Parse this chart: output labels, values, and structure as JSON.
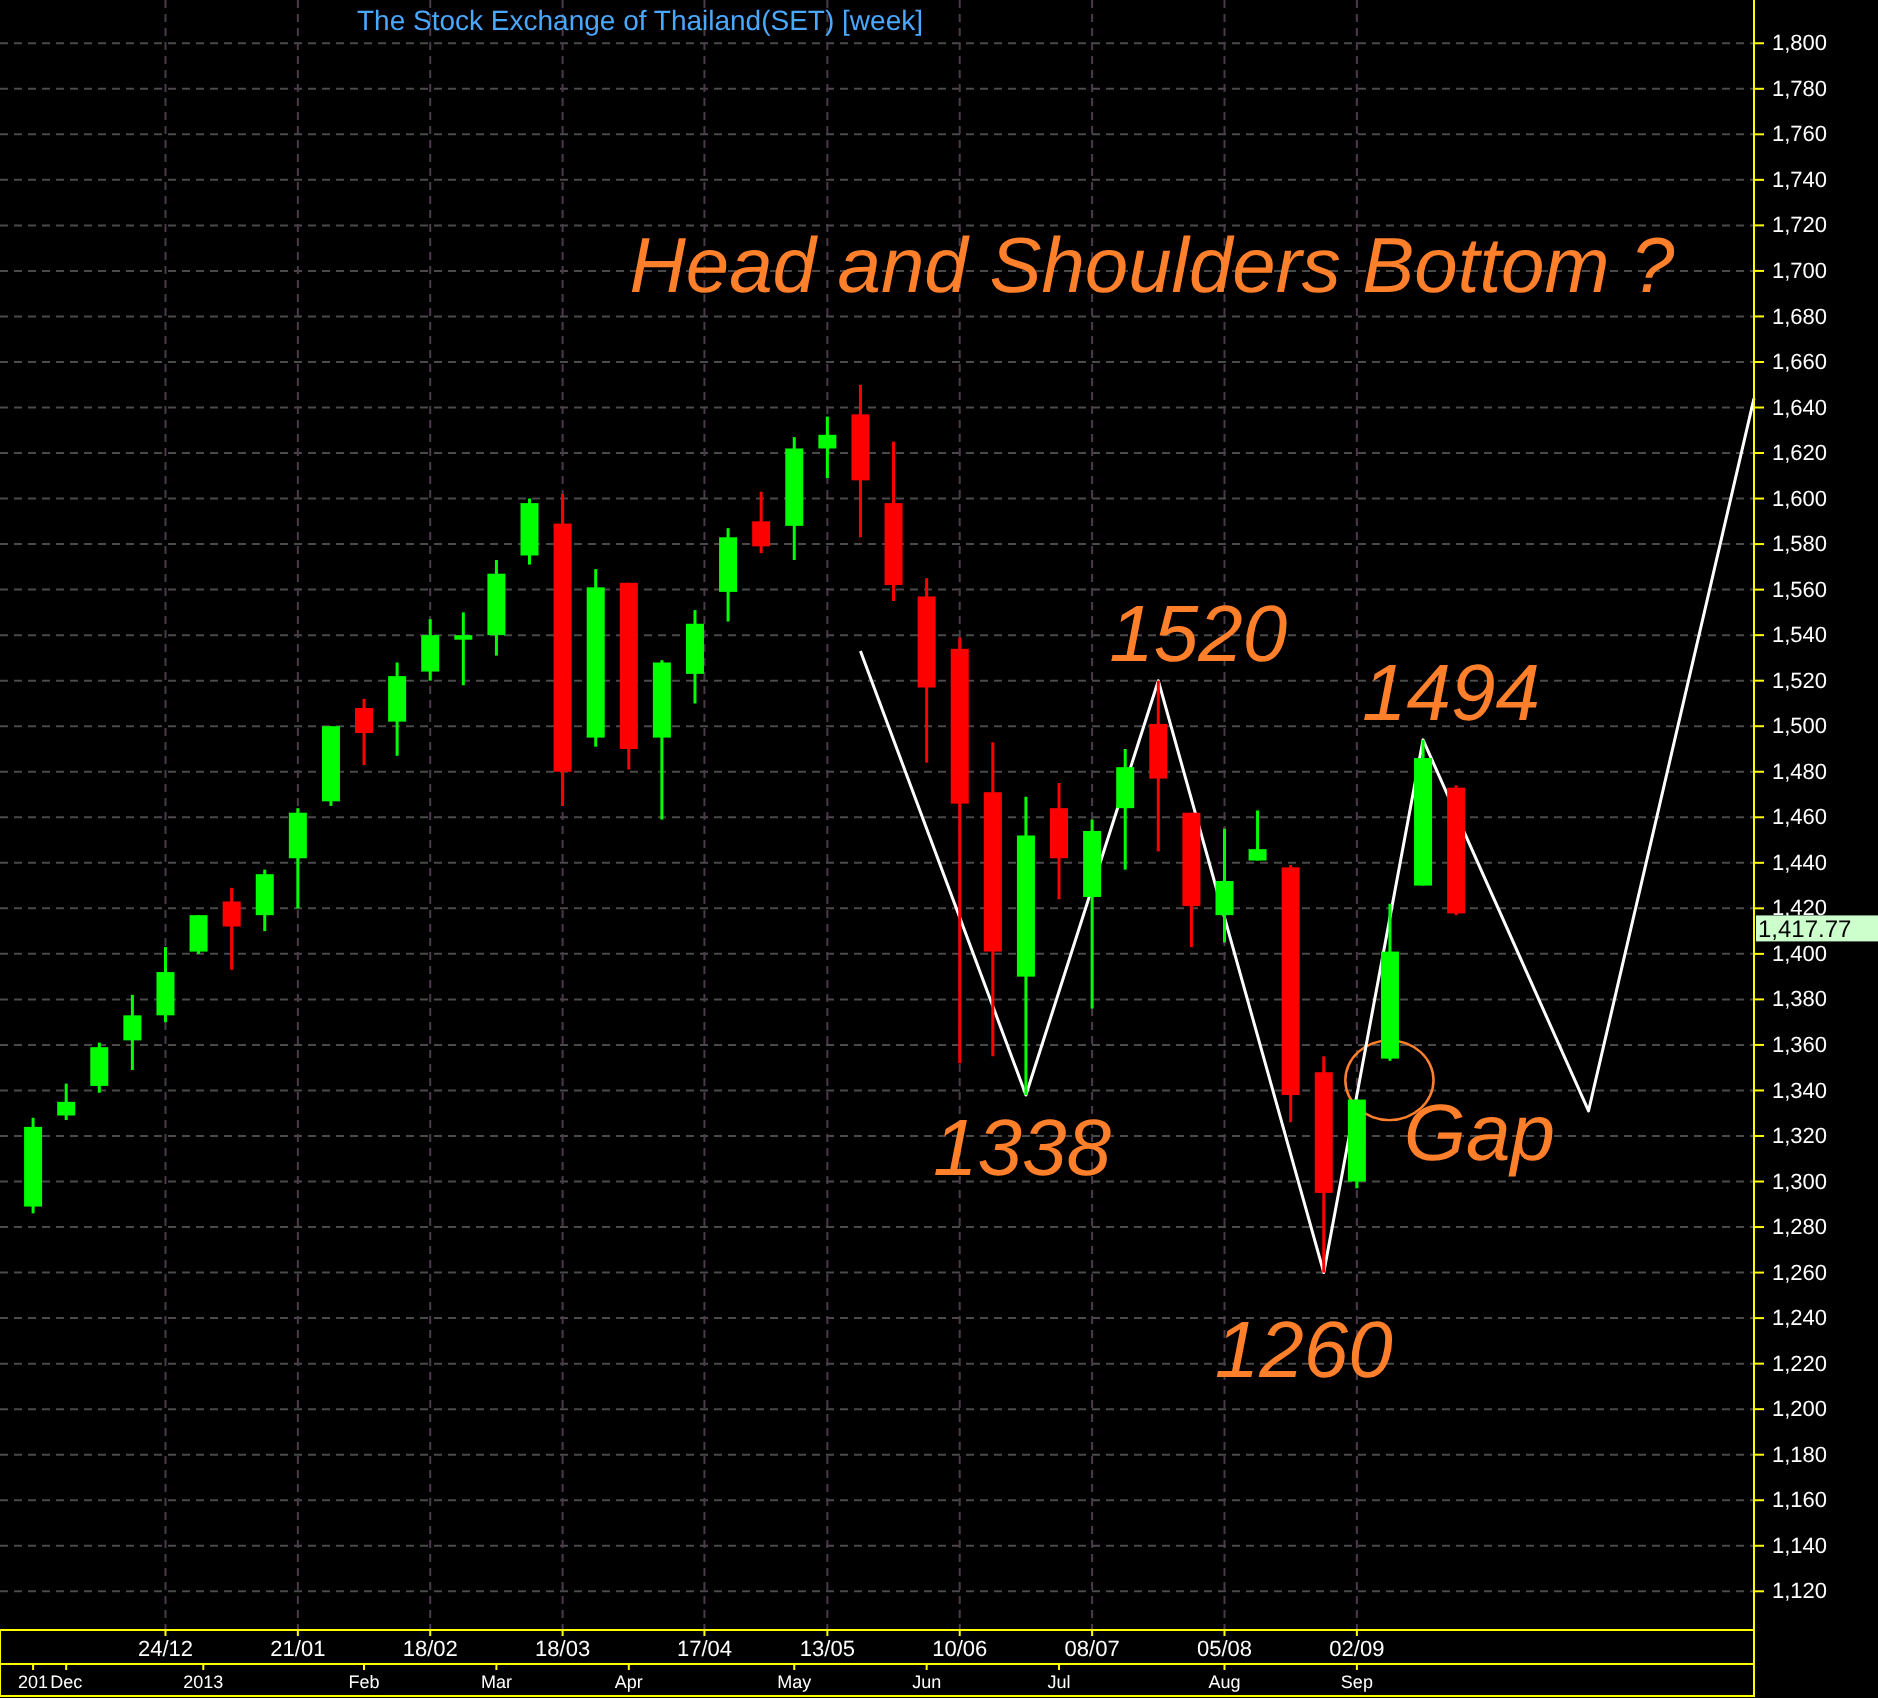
{
  "chart_data": {
    "type": "candlestick",
    "title": "The Stock Exchange of Thailand(SET) [week]",
    "annotations": [
      "Head and Shoulders Bottom ?",
      {
        "text": "1520",
        "x": "2013-07-22",
        "y": 1520
      },
      {
        "text": "1338",
        "x": "2013-06-24",
        "y": 1338
      },
      {
        "text": "1260",
        "x": "2013-08-26",
        "y": 1260
      },
      {
        "text": "1494",
        "x": "2013-09-16",
        "y": 1494
      },
      "Gap",
      "1,417.77"
    ],
    "x": [
      "2012-11-26",
      "2012-12-03",
      "2012-12-10",
      "2012-12-17",
      "2012-12-24",
      "2012-12-31",
      "2013-01-07",
      "2013-01-14",
      "2013-01-21",
      "2013-01-28",
      "2013-02-04",
      "2013-02-11",
      "2013-02-18",
      "2013-02-25",
      "2013-03-04",
      "2013-03-11",
      "2013-03-18",
      "2013-03-25",
      "2013-04-01",
      "2013-04-08",
      "2013-04-15",
      "2013-04-22",
      "2013-04-29",
      "2013-05-06",
      "2013-05-13",
      "2013-05-20",
      "2013-05-27",
      "2013-06-03",
      "2013-06-10",
      "2013-06-17",
      "2013-06-24",
      "2013-07-01",
      "2013-07-08",
      "2013-07-15",
      "2013-07-22",
      "2013-07-29",
      "2013-08-05",
      "2013-08-12",
      "2013-08-19",
      "2013-08-26",
      "2013-09-02",
      "2013-09-09",
      "2013-09-16",
      "2013-09-23"
    ],
    "ohlc": [
      [
        1289,
        1328,
        1286,
        1324
      ],
      [
        1329,
        1343,
        1327,
        1335
      ],
      [
        1342,
        1361,
        1339,
        1359
      ],
      [
        1362,
        1382,
        1349,
        1373
      ],
      [
        1373,
        1403,
        1370,
        1392
      ],
      [
        1401,
        1417,
        1400,
        1417
      ],
      [
        1423,
        1429,
        1393,
        1412
      ],
      [
        1417,
        1437,
        1410,
        1435
      ],
      [
        1442,
        1464,
        1420,
        1462
      ],
      [
        1467,
        1500,
        1465,
        1500
      ],
      [
        1508,
        1512,
        1483,
        1497
      ],
      [
        1502,
        1528,
        1487,
        1522
      ],
      [
        1524,
        1547,
        1520,
        1540
      ],
      [
        1538,
        1550,
        1518,
        1540
      ],
      [
        1540,
        1573,
        1531,
        1567
      ],
      [
        1575,
        1600,
        1571,
        1598
      ],
      [
        1589,
        1602,
        1465,
        1480
      ],
      [
        1495,
        1569,
        1491,
        1561
      ],
      [
        1563,
        1563,
        1481,
        1490
      ],
      [
        1495,
        1529,
        1459,
        1528
      ],
      [
        1523,
        1551,
        1510,
        1545
      ],
      [
        1559,
        1587,
        1546,
        1583
      ],
      [
        1590,
        1603,
        1576,
        1579
      ],
      [
        1588,
        1627,
        1573,
        1622
      ],
      [
        1622,
        1636,
        1609,
        1628
      ],
      [
        1637,
        1650,
        1583,
        1608
      ],
      [
        1598,
        1625,
        1555,
        1562
      ],
      [
        1557,
        1565,
        1484,
        1517
      ],
      [
        1534,
        1539,
        1352,
        1466
      ],
      [
        1471,
        1493,
        1355,
        1401
      ],
      [
        1390,
        1469,
        1338,
        1452
      ],
      [
        1464,
        1475,
        1424,
        1442
      ],
      [
        1425,
        1459,
        1376,
        1454
      ],
      [
        1464,
        1490,
        1437,
        1482
      ],
      [
        1501,
        1520,
        1445,
        1477
      ],
      [
        1462,
        1462,
        1403,
        1421
      ],
      [
        1417,
        1455,
        1405,
        1432
      ],
      [
        1441,
        1463,
        1441,
        1446
      ],
      [
        1438,
        1439,
        1326,
        1338
      ],
      [
        1348,
        1355,
        1260,
        1295
      ],
      [
        1300,
        1336,
        1297,
        1336
      ],
      [
        1354,
        1422,
        1353,
        1401
      ],
      [
        1430,
        1494,
        1430,
        1486
      ],
      [
        1473,
        1474,
        1417,
        1417.77
      ]
    ],
    "colors": [
      "#00ff00",
      "#00ff00",
      "#00ff00",
      "#00ff00",
      "#00ff00",
      "#00ff00",
      "#ff0000",
      "#00ff00",
      "#00ff00",
      "#00ff00",
      "#ff0000",
      "#00ff00",
      "#00ff00",
      "#00ff00",
      "#00ff00",
      "#00ff00",
      "#ff0000",
      "#00ff00",
      "#ff0000",
      "#00ff00",
      "#00ff00",
      "#00ff00",
      "#ff0000",
      "#00ff00",
      "#00ff00",
      "#ff0000",
      "#ff0000",
      "#ff0000",
      "#ff0000",
      "#ff0000",
      "#00ff00",
      "#ff0000",
      "#00ff00",
      "#00ff00",
      "#ff0000",
      "#ff0000",
      "#00ff00",
      "#00ff00",
      "#ff0000",
      "#ff0000",
      "#00ff00",
      "#00ff00",
      "#00ff00",
      "#ff0000"
    ],
    "series": [
      {
        "type": "line",
        "color": "#ffffff",
        "x": [
          "2013-05-20",
          "2013-06-24",
          "2013-07-22",
          "2013-08-26",
          "2013-09-16",
          "2013-10-21",
          "2013-11-25"
        ],
        "values": [
          1533,
          1338,
          1520,
          1260,
          1494,
          1331,
          1644
        ]
      }
    ],
    "xlim": [
      "2012-11-19",
      "2013-11-25"
    ],
    "xticks": [
      {
        "value": "2012-12-24",
        "label": "24/12"
      },
      {
        "value": "2013-01-21",
        "label": "21/01"
      },
      {
        "value": "2013-02-18",
        "label": "18/02"
      },
      {
        "value": "2013-03-18",
        "label": "18/03"
      },
      {
        "value": "2013-04-17",
        "label": "17/04"
      },
      {
        "value": "2013-05-13",
        "label": "13/05"
      },
      {
        "value": "2013-06-10",
        "label": "10/06"
      },
      {
        "value": "2013-07-08",
        "label": "08/07"
      },
      {
        "value": "2013-08-05",
        "label": "05/08"
      },
      {
        "value": "2013-09-02",
        "label": "02/09"
      }
    ],
    "x2lim": [
      "2012-11-19",
      "2013-11-25"
    ],
    "x2ticks": [
      {
        "value": "2012-11-26",
        "label": "201"
      },
      {
        "value": "2012-12-03",
        "label": "Dec"
      },
      {
        "value": "2013-01-01",
        "label": "2013"
      },
      {
        "value": "2013-02-04",
        "label": "Feb"
      },
      {
        "value": "2013-03-04",
        "label": "Mar"
      },
      {
        "value": "2013-04-01",
        "label": "Apr"
      },
      {
        "value": "2013-05-06",
        "label": "May"
      },
      {
        "value": "2013-06-03",
        "label": "Jun"
      },
      {
        "value": "2013-07-01",
        "label": "Jul"
      },
      {
        "value": "2013-08-05",
        "label": "Aug"
      },
      {
        "value": "2013-09-02",
        "label": "Sep"
      }
    ],
    "ylim": [
      1103,
      1819
    ],
    "yticks": [
      {
        "value": 1120,
        "label": "1,120"
      },
      {
        "value": 1140,
        "label": "1,140"
      },
      {
        "value": 1160,
        "label": "1,160"
      },
      {
        "value": 1180,
        "label": "1,180"
      },
      {
        "value": 1200,
        "label": "1,200"
      },
      {
        "value": 1220,
        "label": "1,220"
      },
      {
        "value": 1240,
        "label": "1,240"
      },
      {
        "value": 1260,
        "label": "1,260"
      },
      {
        "value": 1280,
        "label": "1,280"
      },
      {
        "value": 1300,
        "label": "1,300"
      },
      {
        "value": 1320,
        "label": "1,320"
      },
      {
        "value": 1340,
        "label": "1,340"
      },
      {
        "value": 1360,
        "label": "1,360"
      },
      {
        "value": 1380,
        "label": "1,380"
      },
      {
        "value": 1400,
        "label": "1,400"
      },
      {
        "value": 1420,
        "label": "1,420"
      },
      {
        "value": 1440,
        "label": "1,440"
      },
      {
        "value": 1460,
        "label": "1,460"
      },
      {
        "value": 1480,
        "label": "1,480"
      },
      {
        "value": 1500,
        "label": "1,500"
      },
      {
        "value": 1520,
        "label": "1,520"
      },
      {
        "value": 1540,
        "label": "1,540"
      },
      {
        "value": 1560,
        "label": "1,560"
      },
      {
        "value": 1580,
        "label": "1,580"
      },
      {
        "value": 1600,
        "label": "1,600"
      },
      {
        "value": 1620,
        "label": "1,620"
      },
      {
        "value": 1640,
        "label": "1,640"
      },
      {
        "value": 1660,
        "label": "1,660"
      },
      {
        "value": 1680,
        "label": "1,680"
      },
      {
        "value": 1700,
        "label": "1,700"
      },
      {
        "value": 1720,
        "label": "1,720"
      },
      {
        "value": 1740,
        "label": "1,740"
      },
      {
        "value": 1760,
        "label": "1,760"
      },
      {
        "value": 1780,
        "label": "1,780"
      },
      {
        "value": 1800,
        "label": "1,800"
      }
    ],
    "grid": true
  }
}
